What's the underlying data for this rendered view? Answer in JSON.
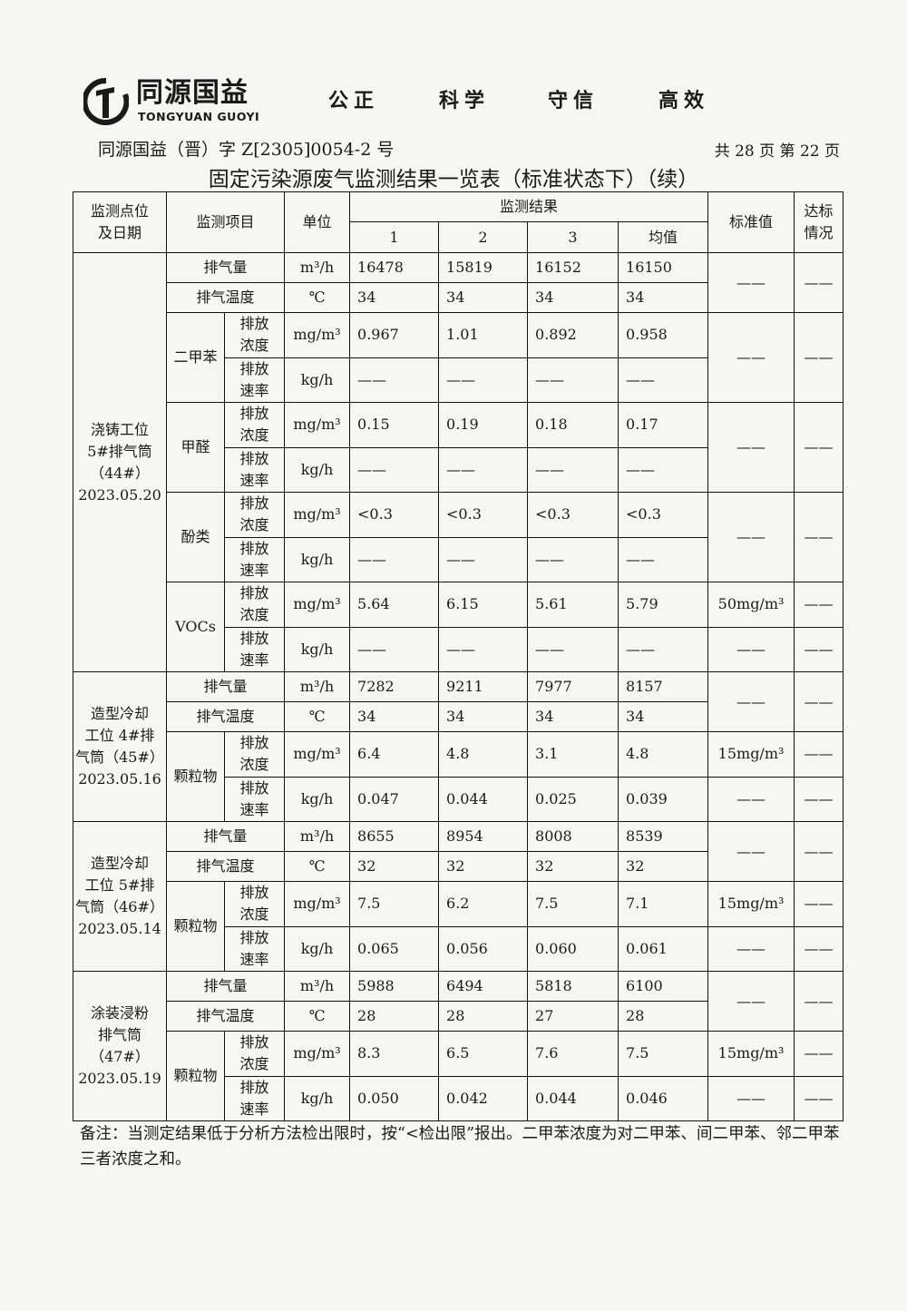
{
  "header": {
    "brand_cn": "同源国益",
    "brand_en": "TONGYUAN GUOYI",
    "motto": [
      "公正",
      "科学",
      "守信",
      "高效"
    ],
    "doc_number": "同源国益（晋）字 Z[2305]0054-2 号",
    "pages": "共 28 页   第 22 页",
    "title": "固定污染源废气监测结果一览表（标准状态下）（续）"
  },
  "table": {
    "headers": {
      "location": "监测点位及日期",
      "item": "监测项目",
      "unit": "单位",
      "results": "监测结果",
      "cols": [
        "1",
        "2",
        "3",
        "均值"
      ],
      "standard": "标准值",
      "compliance": "达标情况"
    },
    "sections": [
      {
        "location": [
          "浇铸工位",
          "5#排气筒",
          "（44#）",
          "2023.05.20"
        ],
        "rows": [
          {
            "item": "排气量",
            "unit": "m³/h",
            "values": [
              "16478",
              "15819",
              "16152",
              "16150"
            ]
          },
          {
            "item": "排气温度",
            "unit": "℃",
            "values": [
              "34",
              "34",
              "34",
              "34"
            ]
          },
          {
            "item": "二甲苯",
            "sub": "排放浓度",
            "unit": "mg/m³",
            "values": [
              "0.967",
              "1.01",
              "0.892",
              "0.958"
            ]
          },
          {
            "item": "二甲苯",
            "sub": "排放速率",
            "unit": "kg/h",
            "values": [
              "——",
              "——",
              "——",
              "——"
            ]
          },
          {
            "item": "甲醛",
            "sub": "排放浓度",
            "unit": "mg/m³",
            "values": [
              "0.15",
              "0.19",
              "0.18",
              "0.17"
            ]
          },
          {
            "item": "甲醛",
            "sub": "排放速率",
            "unit": "kg/h",
            "values": [
              "——",
              "——",
              "——",
              "——"
            ]
          },
          {
            "item": "酚类",
            "sub": "排放浓度",
            "unit": "mg/m³",
            "values": [
              "<0.3",
              "<0.3",
              "<0.3",
              "<0.3"
            ]
          },
          {
            "item": "酚类",
            "sub": "排放速率",
            "unit": "kg/h",
            "values": [
              "——",
              "——",
              "——",
              "——"
            ]
          },
          {
            "item": "VOCs",
            "sub": "排放浓度",
            "unit": "mg/m³",
            "values": [
              "5.64",
              "6.15",
              "5.61",
              "5.79"
            ]
          },
          {
            "item": "VOCs",
            "sub": "排放速率",
            "unit": "kg/h",
            "values": [
              "——",
              "——",
              "——",
              "——"
            ]
          }
        ],
        "standards": [
          {
            "value": "——",
            "result": "——"
          },
          {
            "value": "——",
            "result": "——"
          },
          {
            "value": "——",
            "result": "——"
          },
          {
            "value": "——",
            "result": "——"
          },
          {
            "value": "50mg/m³",
            "result": "——"
          },
          {
            "value": "——",
            "result": "——"
          }
        ]
      },
      {
        "location": [
          "造型冷却",
          "工位 4#排",
          "气筒（45#）",
          "2023.05.16"
        ],
        "rows": [
          {
            "item": "排气量",
            "unit": "m³/h",
            "values": [
              "7282",
              "9211",
              "7977",
              "8157"
            ]
          },
          {
            "item": "排气温度",
            "unit": "℃",
            "values": [
              "34",
              "34",
              "34",
              "34"
            ]
          },
          {
            "item": "颗粒物",
            "sub": "排放浓度",
            "unit": "mg/m³",
            "values": [
              "6.4",
              "4.8",
              "3.1",
              "4.8"
            ]
          },
          {
            "item": "颗粒物",
            "sub": "排放速率",
            "unit": "kg/h",
            "values": [
              "0.047",
              "0.044",
              "0.025",
              "0.039"
            ]
          }
        ],
        "standards": [
          {
            "value": "——",
            "result": "——"
          },
          {
            "value": "15mg/m³",
            "result": "——"
          },
          {
            "value": "——",
            "result": "——"
          }
        ]
      },
      {
        "location": [
          "造型冷却",
          "工位 5#排",
          "气筒（46#）",
          "2023.05.14"
        ],
        "rows": [
          {
            "item": "排气量",
            "unit": "m³/h",
            "values": [
              "8655",
              "8954",
              "8008",
              "8539"
            ]
          },
          {
            "item": "排气温度",
            "unit": "℃",
            "values": [
              "32",
              "32",
              "32",
              "32"
            ]
          },
          {
            "item": "颗粒物",
            "sub": "排放浓度",
            "unit": "mg/m³",
            "values": [
              "7.5",
              "6.2",
              "7.5",
              "7.1"
            ]
          },
          {
            "item": "颗粒物",
            "sub": "排放速率",
            "unit": "kg/h",
            "values": [
              "0.065",
              "0.056",
              "0.060",
              "0.061"
            ]
          }
        ],
        "standards": [
          {
            "value": "——",
            "result": "——"
          },
          {
            "value": "15mg/m³",
            "result": "——"
          },
          {
            "value": "——",
            "result": "——"
          }
        ]
      },
      {
        "location": [
          "涂装浸粉",
          "排气筒",
          "（47#）",
          "2023.05.19"
        ],
        "rows": [
          {
            "item": "排气量",
            "unit": "m³/h",
            "values": [
              "5988",
              "6494",
              "5818",
              "6100"
            ]
          },
          {
            "item": "排气温度",
            "unit": "℃",
            "values": [
              "28",
              "28",
              "27",
              "28"
            ]
          },
          {
            "item": "颗粒物",
            "sub": "排放浓度",
            "unit": "mg/m³",
            "values": [
              "8.3",
              "6.5",
              "7.6",
              "7.5"
            ]
          },
          {
            "item": "颗粒物",
            "sub": "排放速率",
            "unit": "kg/h",
            "values": [
              "0.050",
              "0.042",
              "0.044",
              "0.046"
            ]
          }
        ],
        "standards": [
          {
            "value": "——",
            "result": "——"
          },
          {
            "value": "15mg/m³",
            "result": "——"
          },
          {
            "value": "——",
            "result": "——"
          }
        ]
      }
    ]
  },
  "note": "备注：当测定结果低于分析方法检出限时，按“<检出限”报出。二甲苯浓度为对二甲苯、间二甲苯、邻二甲苯三者浓度之和。"
}
